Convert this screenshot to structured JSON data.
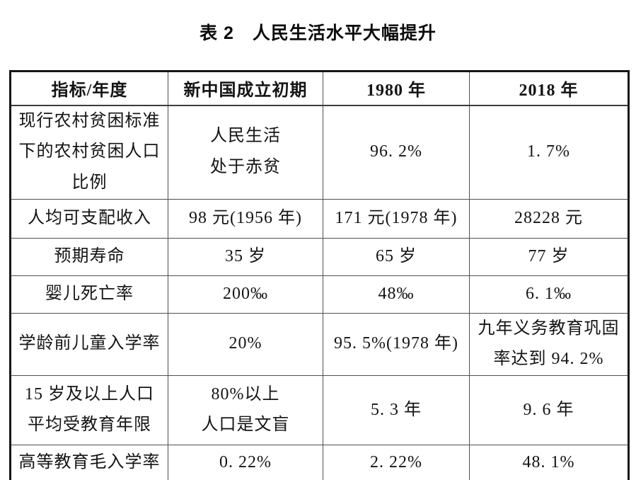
{
  "title": "表 2　人民生活水平大幅提升",
  "colors": {
    "background": "#ffffff",
    "text": "#141414",
    "outer_border": "#161616",
    "inner_grid": "#4f4f4f"
  },
  "table": {
    "headers": [
      "指标/年度",
      "新中国成立初期",
      "1980 年",
      "2018 年"
    ],
    "rows": [
      [
        "现行农村贫困标准\n下的农村贫困人口\n比例",
        "人民生活\n处于赤贫",
        "96. 2%",
        "1. 7%"
      ],
      [
        "人均可支配收入",
        "98 元(1956 年)",
        "171 元(1978 年)",
        "28228 元"
      ],
      [
        "预期寿命",
        "35 岁",
        "65 岁",
        "77 岁"
      ],
      [
        "婴儿死亡率",
        "200‰",
        "48‰",
        "6. 1‰"
      ],
      [
        "学龄前儿童入学率",
        "20%",
        "95. 5%(1978 年)",
        "九年义务教育巩固\n率达到 94. 2%"
      ],
      [
        "15 岁及以上人口\n平均受教育年限",
        "80%以上\n人口是文盲",
        "5. 3 年",
        "9. 6 年"
      ],
      [
        "高等教育毛入学率",
        "0. 22%",
        "2. 22%",
        "48. 1%"
      ]
    ]
  }
}
